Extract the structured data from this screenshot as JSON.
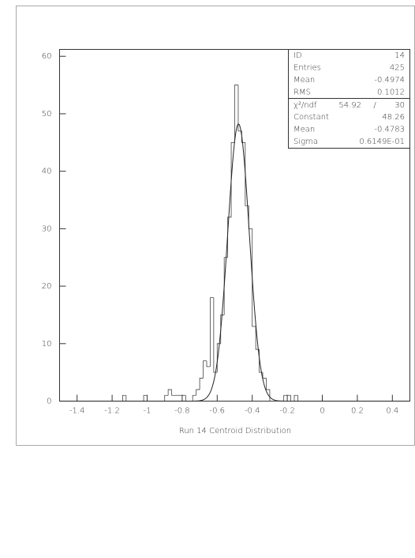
{
  "chart_data": {
    "type": "histogram",
    "xlabel": "Run 14 Centroid Distribution",
    "bins": [
      -1.5,
      -1.48,
      -1.46,
      -1.44,
      -1.42,
      -1.4,
      -1.38,
      -1.36,
      -1.34,
      -1.32,
      -1.3,
      -1.28,
      -1.26,
      -1.24,
      -1.22,
      -1.2,
      -1.18,
      -1.16,
      -1.14,
      -1.12,
      -1.1,
      -1.08,
      -1.06,
      -1.04,
      -1.02,
      -1.0,
      -0.98,
      -0.96,
      -0.94,
      -0.92,
      -0.9,
      -0.88,
      -0.86,
      -0.84,
      -0.82,
      -0.8,
      -0.78,
      -0.76,
      -0.74,
      -0.72,
      -0.7,
      -0.68,
      -0.66,
      -0.64,
      -0.62,
      -0.6,
      -0.58,
      -0.56,
      -0.54,
      -0.52,
      -0.5,
      -0.48,
      -0.46,
      -0.44,
      -0.42,
      -0.4,
      -0.38,
      -0.36,
      -0.34,
      -0.32,
      -0.3,
      -0.28,
      -0.26,
      -0.24,
      -0.22,
      -0.2,
      -0.18,
      -0.16,
      -0.14,
      -0.12,
      -0.1,
      -0.08,
      -0.06,
      -0.04,
      -0.02,
      0.0,
      0.02,
      0.04,
      0.06,
      0.08,
      0.1,
      0.12,
      0.14,
      0.16,
      0.18,
      0.2,
      0.22,
      0.24,
      0.26,
      0.28,
      0.3,
      0.32,
      0.34,
      0.36,
      0.38,
      0.4,
      0.42,
      0.44,
      0.46,
      0.48,
      0.5
    ],
    "values": [
      0,
      0,
      0,
      0,
      0,
      0,
      0,
      0,
      0,
      0,
      0,
      0,
      0,
      0,
      0,
      0,
      0,
      0,
      1,
      0,
      0,
      0,
      0,
      0,
      1,
      0,
      0,
      0,
      0,
      0,
      1,
      2,
      1,
      1,
      1,
      1,
      0,
      0,
      1,
      2,
      4,
      7,
      6,
      18,
      5,
      10,
      15,
      25,
      32,
      45,
      55,
      47,
      45,
      34,
      30,
      13,
      9,
      5,
      4,
      2,
      0,
      0,
      0,
      0,
      1,
      1,
      0,
      1,
      0,
      0,
      0,
      0,
      0,
      0,
      0,
      0,
      0,
      0,
      0,
      0,
      0,
      0,
      0,
      0,
      0,
      0,
      0,
      0,
      0,
      0,
      0,
      0,
      0,
      0,
      0,
      0,
      0,
      0,
      0,
      0
    ],
    "color": "#444444",
    "xlim": [
      -1.5,
      0.5
    ],
    "ylim": [
      0,
      61.2
    ],
    "xticks": [
      -1.4,
      -1.2,
      -1,
      -0.8,
      -0.6,
      -0.4,
      -0.2,
      0,
      0.2,
      0.4
    ],
    "yticks": [
      0,
      10,
      20,
      30,
      40,
      50,
      60
    ],
    "stats": [
      {
        "label": "ID",
        "value": 14
      },
      {
        "label": "Entries",
        "value": 425
      },
      {
        "label": "Mean",
        "value": -0.4974
      },
      {
        "label": "RMS",
        "value": 0.1012
      }
    ],
    "chi2": {
      "label": "χ²/ndf",
      "value": 54.92,
      "separator": "/",
      "ndf": 30
    },
    "fit": [
      {
        "label": "Constant",
        "value": 48.26
      },
      {
        "label": "Mean",
        "value": -0.4783
      },
      {
        "label": "Sigma",
        "value": {
          "value": 0.06149,
          "label": "0.6149E-01"
        }
      }
    ]
  }
}
